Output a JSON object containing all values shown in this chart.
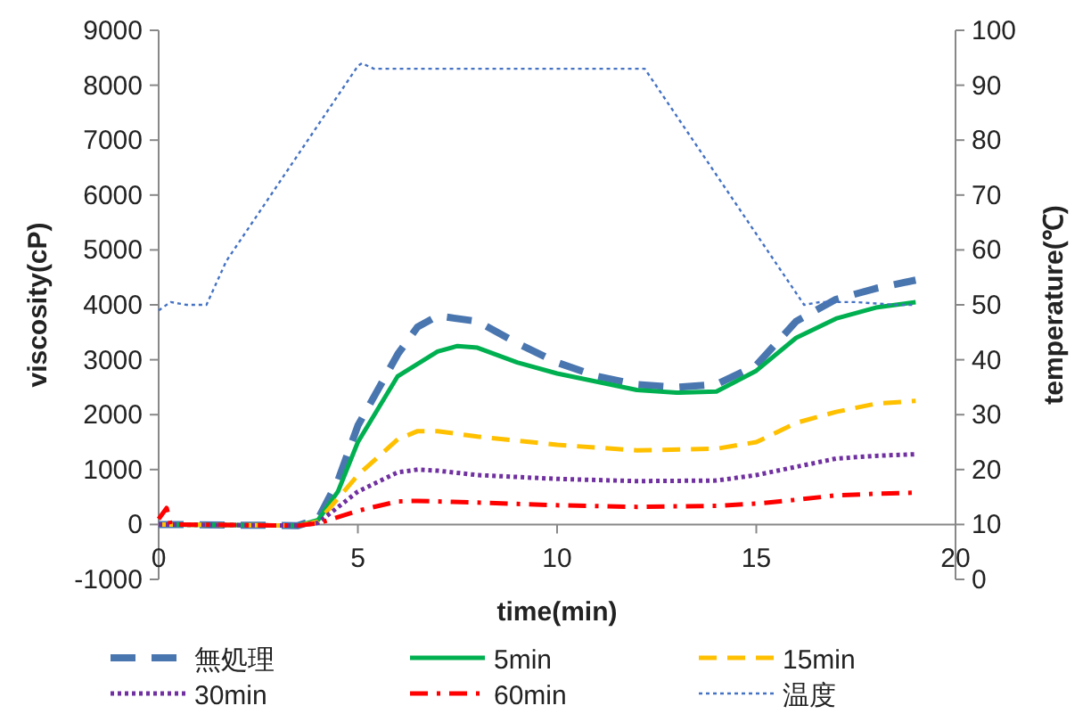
{
  "chart_data": {
    "type": "line",
    "xlabel": "time(min)",
    "ylabel": "viscosity(cP)",
    "y2label": "temperature(℃)",
    "xlim": [
      0,
      20
    ],
    "xticks": [
      0,
      5,
      10,
      15,
      20
    ],
    "ylim": [
      -1000,
      9000
    ],
    "yticks": [
      -1000,
      0,
      1000,
      2000,
      3000,
      4000,
      5000,
      6000,
      7000,
      8000,
      9000
    ],
    "y2lim": [
      0,
      100
    ],
    "y2ticks": [
      0,
      10,
      20,
      30,
      40,
      50,
      60,
      70,
      80,
      90,
      100
    ],
    "grid": false,
    "legend": "bottom",
    "marker": "none",
    "series": [
      {
        "name": "無処理",
        "color": "#4a76b0",
        "line_style": "dashed",
        "x": [
          0,
          3.5,
          4,
          4.5,
          5,
          6,
          6.5,
          7,
          8,
          9,
          10,
          11,
          12,
          13,
          14,
          15,
          16,
          17,
          18,
          19
        ],
        "values": [
          0,
          -20,
          100,
          800,
          1800,
          3100,
          3600,
          3800,
          3700,
          3300,
          2950,
          2700,
          2550,
          2500,
          2550,
          2900,
          3700,
          4100,
          4300,
          4450
        ]
      },
      {
        "name": "5min",
        "color": "#00b050",
        "line_style": "solid",
        "x": [
          0,
          3.5,
          4,
          4.5,
          5,
          6,
          7,
          7.5,
          8,
          9,
          10,
          11,
          12,
          13,
          14,
          15,
          16,
          17,
          18,
          19
        ],
        "values": [
          0,
          -20,
          80,
          600,
          1500,
          2700,
          3150,
          3250,
          3220,
          2950,
          2750,
          2600,
          2450,
          2400,
          2420,
          2800,
          3400,
          3750,
          3950,
          4050
        ]
      },
      {
        "name": "15min",
        "color": "#ffc000",
        "line_style": "dashed",
        "x": [
          0,
          3.5,
          4,
          5,
          6,
          6.5,
          7,
          8,
          10,
          12,
          14,
          15,
          16,
          17,
          18,
          19
        ],
        "values": [
          0,
          -20,
          50,
          900,
          1550,
          1700,
          1700,
          1600,
          1450,
          1350,
          1380,
          1500,
          1850,
          2050,
          2200,
          2250
        ]
      },
      {
        "name": "30min",
        "color": "#7030a0",
        "line_style": "dotted",
        "x": [
          0,
          3.5,
          4,
          5,
          6,
          6.5,
          7,
          8,
          10,
          12,
          14,
          15,
          16,
          17,
          18,
          19
        ],
        "values": [
          0,
          -20,
          30,
          600,
          950,
          1000,
          980,
          900,
          830,
          790,
          800,
          900,
          1050,
          1200,
          1250,
          1280
        ]
      },
      {
        "name": "60min",
        "color": "#ff0000",
        "line_style": "dashdot",
        "x": [
          0,
          0.2,
          0.3,
          3.5,
          4,
          5,
          6,
          6.5,
          8,
          10,
          12,
          14,
          15,
          16,
          17,
          18,
          19
        ],
        "values": [
          100,
          300,
          0,
          -20,
          20,
          250,
          420,
          430,
          400,
          350,
          320,
          340,
          380,
          450,
          530,
          560,
          580
        ]
      },
      {
        "name": "温度",
        "color": "#4472c4",
        "line_style": "dotted",
        "axis": "y2",
        "x": [
          0,
          0.3,
          0.7,
          1.2,
          1.7,
          5,
          5.1,
          5.4,
          12.2,
          16.2,
          16.6,
          17.5,
          18.5,
          19
        ],
        "values": [
          49,
          50.5,
          50,
          50,
          58,
          93.5,
          94,
          93,
          93,
          50,
          50.5,
          50.5,
          50,
          50
        ]
      }
    ]
  }
}
